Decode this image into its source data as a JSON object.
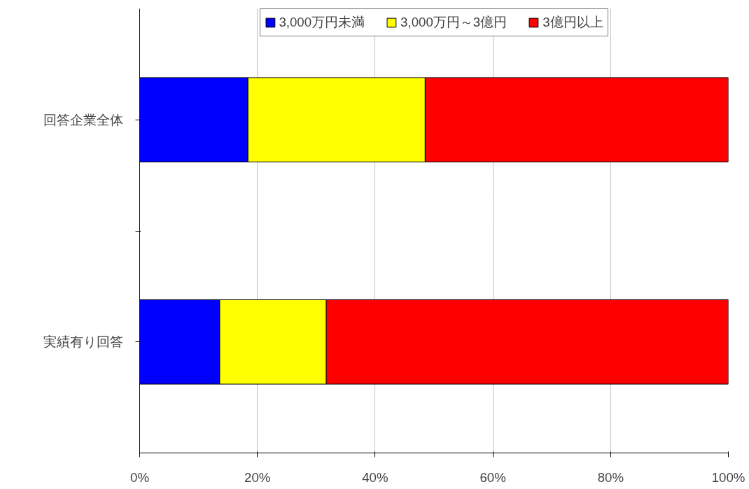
{
  "chart_data": {
    "type": "bar",
    "orientation": "horizontal",
    "stacked": true,
    "categories": [
      "回答企業全体",
      "実績有り回答"
    ],
    "series": [
      {
        "name": "3,000万円未満",
        "color": "#0000ff",
        "values": [
          18.4,
          13.6
        ]
      },
      {
        "name": "3,000万円～3億円",
        "color": "#ffff00",
        "values": [
          30.1,
          18.1
        ]
      },
      {
        "name": "3億円以上",
        "color": "#ff0000",
        "values": [
          51.5,
          68.3
        ]
      }
    ],
    "xlim": [
      0,
      100
    ],
    "xticks": [
      {
        "value": 0,
        "label": "0%"
      },
      {
        "value": 20,
        "label": "20%"
      },
      {
        "value": 40,
        "label": "40%"
      },
      {
        "value": 60,
        "label": "60%"
      },
      {
        "value": 80,
        "label": "80%"
      },
      {
        "value": 100,
        "label": "100%"
      }
    ],
    "grid": "x",
    "legend": "top"
  }
}
